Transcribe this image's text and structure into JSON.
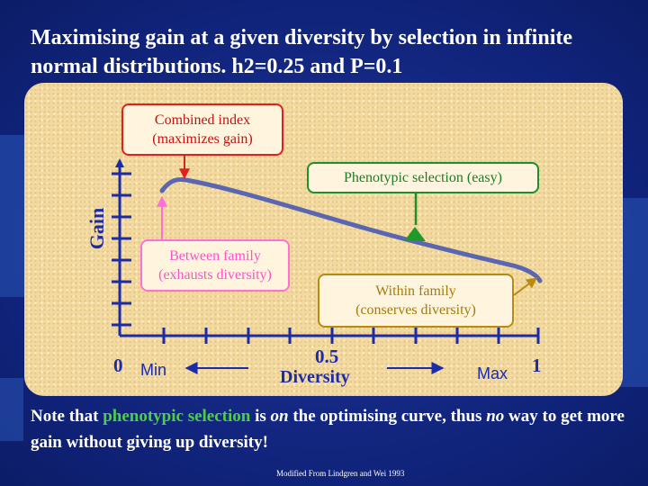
{
  "slide": {
    "title": "Maximising gain at a given diversity by selection in infinite normal distributions. h2=0.25 and P=0.1",
    "note": {
      "part1": "Note that ",
      "highlight": "phenotypic selection",
      "part2": " is ",
      "on": "on",
      "part3": " the optimising curve, thus ",
      "no": "no",
      "part4": " way to get more gain without giving up diversity!"
    },
    "credit": "Modified From Lindgren and Wei 1993"
  },
  "chart": {
    "ylabel": "Gain",
    "xlabel": "Diversity",
    "x_tick_0": "0",
    "x_tick_mid": "0.5",
    "x_tick_1": "1",
    "min_label": "Min",
    "max_label": "Max"
  },
  "callouts": {
    "combined_line1": "Combined index",
    "combined_line2": "(maximizes gain)",
    "phenotypic": "Phenotypic selection (easy)",
    "between_line1": "Between family",
    "between_line2": "(exhausts diversity)",
    "within_line1": "Within family",
    "within_line2": "(conserves diversity)"
  },
  "colors": {
    "background": "#142a86",
    "panel": "#f2d9a0",
    "axis": "#1c2ba8",
    "curve": "#5a66b0",
    "combined": "#e02020",
    "phenotypic": "#1f8f2a",
    "between": "#ff6fd8",
    "within": "#b88a10"
  }
}
